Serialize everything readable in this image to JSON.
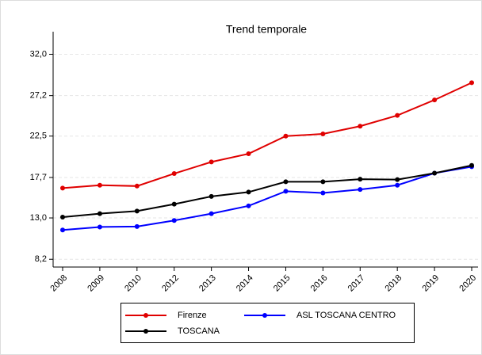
{
  "chart_data": {
    "type": "line",
    "title": "Trend temporale",
    "categories": [
      "2008",
      "2009",
      "2010",
      "2012",
      "2013",
      "2014",
      "2015",
      "2016",
      "2017",
      "2018",
      "2019",
      "2020"
    ],
    "series": [
      {
        "name": "Firenze",
        "color": "#e00000",
        "values": [
          16.46,
          16.8,
          16.7,
          18.15,
          19.5,
          20.45,
          22.5,
          22.75,
          23.65,
          24.9,
          26.7,
          28.7
        ]
      },
      {
        "name": "ASL TOSCANA CENTRO",
        "color": "#0000ff",
        "values": [
          11.6,
          11.95,
          12.0,
          12.7,
          13.5,
          14.4,
          16.1,
          15.9,
          16.3,
          16.8,
          18.2,
          18.95
        ]
      },
      {
        "name": "TOSCANA",
        "color": "#000000",
        "values": [
          13.1,
          13.5,
          13.8,
          14.6,
          15.5,
          16.0,
          17.2,
          17.2,
          17.5,
          17.45,
          18.2,
          19.1
        ]
      }
    ],
    "ylim": [
      7.3,
      33.7
    ],
    "yticks": [
      {
        "value": 8.2,
        "label": "8,2"
      },
      {
        "value": 13.0,
        "label": "13,0"
      },
      {
        "value": 17.7,
        "label": "17,7"
      },
      {
        "value": 22.5,
        "label": "22,5"
      },
      {
        "value": 27.2,
        "label": "27,2"
      },
      {
        "value": 32.0,
        "label": "32,0"
      }
    ],
    "grid": true
  }
}
